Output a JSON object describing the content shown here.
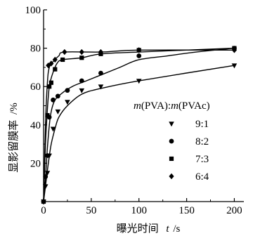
{
  "chart_data": {
    "type": "line",
    "xlabel": "曝光时间",
    "xlabel_var": "t",
    "xlabel_unit": "/s",
    "ylabel": "显影留膜率",
    "ylabel_unit": "/%",
    "xlim": [
      0,
      210
    ],
    "ylim": [
      0,
      100
    ],
    "xticks": [
      0,
      50,
      100,
      150,
      200
    ],
    "yticks": [
      20,
      40,
      60,
      80
    ],
    "ytick_top": 100,
    "grid": false,
    "legend": {
      "title_parts": [
        "m",
        "(PVA):",
        "m",
        "(PVAc)"
      ],
      "placement": "center-right"
    },
    "series": [
      {
        "name": "9:1",
        "marker": "triangle-down",
        "points": [
          [
            0,
            0
          ],
          [
            2,
            8
          ],
          [
            4,
            15
          ],
          [
            6,
            24
          ],
          [
            10,
            38
          ],
          [
            15,
            47
          ],
          [
            25,
            52
          ],
          [
            40,
            58
          ],
          [
            60,
            60
          ],
          [
            100,
            63
          ],
          [
            200,
            71
          ]
        ],
        "curve": [
          [
            0,
            0
          ],
          [
            2,
            8
          ],
          [
            5,
            20
          ],
          [
            8,
            30
          ],
          [
            12,
            38
          ],
          [
            16,
            44
          ],
          [
            25,
            50
          ],
          [
            40,
            56
          ],
          [
            60,
            59
          ],
          [
            100,
            63
          ],
          [
            200,
            71
          ]
        ]
      },
      {
        "name": "8:2",
        "marker": "circle",
        "points": [
          [
            0,
            0
          ],
          [
            2,
            13
          ],
          [
            4,
            24
          ],
          [
            6,
            44
          ],
          [
            10,
            53
          ],
          [
            15,
            55
          ],
          [
            25,
            58
          ],
          [
            40,
            63
          ],
          [
            60,
            67
          ],
          [
            100,
            76
          ],
          [
            200,
            80
          ]
        ],
        "curve": [
          [
            0,
            0
          ],
          [
            2,
            12
          ],
          [
            4,
            28
          ],
          [
            7,
            44
          ],
          [
            11,
            52
          ],
          [
            18,
            56
          ],
          [
            30,
            60
          ],
          [
            45,
            63
          ],
          [
            60,
            66
          ],
          [
            80,
            70
          ],
          [
            100,
            74
          ],
          [
            130,
            76
          ],
          [
            160,
            78
          ],
          [
            200,
            80
          ]
        ]
      },
      {
        "name": "7:3",
        "marker": "square",
        "points": [
          [
            0,
            0
          ],
          [
            4,
            45
          ],
          [
            6,
            60
          ],
          [
            8,
            62
          ],
          [
            12,
            69
          ],
          [
            20,
            74
          ],
          [
            40,
            75
          ],
          [
            60,
            77
          ],
          [
            100,
            79
          ],
          [
            200,
            80
          ]
        ],
        "curve": [
          [
            0,
            0
          ],
          [
            2,
            30
          ],
          [
            4,
            48
          ],
          [
            6,
            60
          ],
          [
            9,
            66
          ],
          [
            14,
            72
          ],
          [
            20,
            74
          ],
          [
            40,
            75
          ],
          [
            60,
            77
          ],
          [
            100,
            78
          ],
          [
            200,
            80
          ]
        ]
      },
      {
        "name": "6:4",
        "marker": "diamond",
        "points": [
          [
            0,
            0
          ],
          [
            5,
            71
          ],
          [
            8,
            72
          ],
          [
            12,
            74
          ],
          [
            22,
            78
          ],
          [
            40,
            78
          ],
          [
            60,
            78
          ],
          [
            100,
            79
          ],
          [
            200,
            79
          ]
        ],
        "curve": [
          [
            0,
            0
          ],
          [
            2,
            40
          ],
          [
            4,
            62
          ],
          [
            6,
            70
          ],
          [
            10,
            73
          ],
          [
            16,
            76
          ],
          [
            22,
            78
          ],
          [
            60,
            78
          ],
          [
            100,
            79
          ],
          [
            200,
            79
          ]
        ]
      }
    ]
  }
}
